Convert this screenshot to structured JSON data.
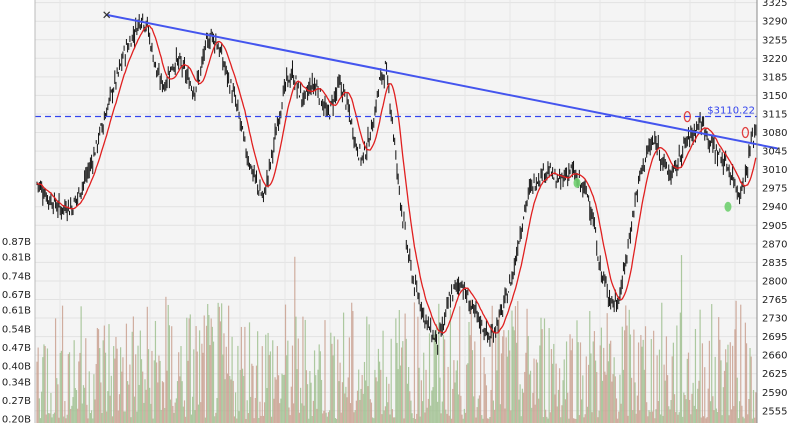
{
  "chart_data": {
    "type": "ohlc",
    "price_axis": {
      "side": "right",
      "range": [
        2532,
        3330
      ],
      "ticks": [
        "2555",
        "2590",
        "2625",
        "2660",
        "2695",
        "2730",
        "2765",
        "2800",
        "2835",
        "2870",
        "2905",
        "2940",
        "2975",
        "3010",
        "3045",
        "3080",
        "3115",
        "3150",
        "3185",
        "3220",
        "3255",
        "3290",
        "3325"
      ]
    },
    "volume_axis": {
      "side": "left",
      "unit": "B",
      "range": [
        0.185,
        0.92
      ],
      "ticks": [
        "0.20B",
        "0.27B",
        "0.34B",
        "0.40B",
        "0.47B",
        "0.54B",
        "0.61B",
        "0.67B",
        "0.74B",
        "0.81B",
        "0.87B"
      ]
    },
    "horizontal_level": {
      "value": 3110.22,
      "label": "$3110.22",
      "style": "dashed",
      "color": "#3344ee"
    },
    "trendline": {
      "from": [
        12,
        3302
      ],
      "to": [
        100,
        3082
      ],
      "color": "#4455ee"
    },
    "moving_average_color": "#e02020",
    "price_series": [
      2985,
      2972,
      2955,
      2948,
      2935,
      2942,
      2938,
      2960,
      2985,
      3010,
      3045,
      3085,
      3120,
      3160,
      3190,
      3230,
      3250,
      3275,
      3300,
      3280,
      3225,
      3180,
      3170,
      3200,
      3215,
      3205,
      3180,
      3160,
      3185,
      3240,
      3265,
      3250,
      3215,
      3180,
      3145,
      3100,
      3045,
      3010,
      2980,
      2955,
      3010,
      3070,
      3130,
      3175,
      3190,
      3160,
      3140,
      3165,
      3170,
      3145,
      3110,
      3140,
      3170,
      3150,
      3105,
      3055,
      3030,
      3060,
      3105,
      3175,
      3200,
      3125,
      3010,
      2920,
      2845,
      2790,
      2760,
      2725,
      2700,
      2685,
      2715,
      2765,
      2785,
      2800,
      2770,
      2745,
      2730,
      2710,
      2690,
      2715,
      2740,
      2775,
      2815,
      2880,
      2935,
      2975,
      2990,
      3005,
      3010,
      2995,
      2985,
      3000,
      3010,
      2990,
      2975,
      2960,
      2900,
      2820,
      2790,
      2760,
      2760,
      2810,
      2880,
      2950,
      3005,
      3040,
      3060,
      3055,
      3020,
      3000,
      3010,
      3045,
      3065,
      3080,
      3100,
      3090,
      3060,
      3045,
      3030,
      3015,
      2990,
      2965,
      2995,
      3060,
      3095
    ],
    "marker_points": [
      {
        "i": 112,
        "price": 3110,
        "kind": "red"
      },
      {
        "i": 93,
        "price": 2985,
        "kind": "green"
      },
      {
        "i": 119,
        "price": 2940,
        "kind": "green"
      },
      {
        "i": 122,
        "price": 3080,
        "kind": "red"
      },
      {
        "i": 12,
        "price": 3302,
        "kind": "x"
      }
    ]
  }
}
